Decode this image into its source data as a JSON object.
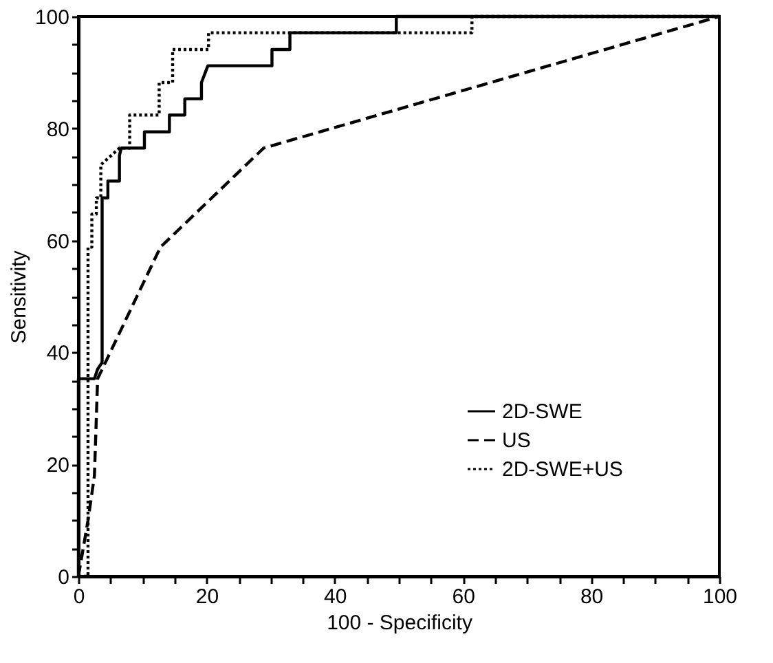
{
  "chart_data": {
    "type": "line",
    "xlabel": "100 - Specificity",
    "ylabel": "Sensitivity",
    "xlim": [
      0,
      100
    ],
    "ylim": [
      0,
      100
    ],
    "xticks": [
      0,
      {
        "value": 5,
        "label": null
      },
      {
        "value": 10,
        "label": null
      },
      {
        "value": 15,
        "label": null
      },
      20,
      {
        "value": 25,
        "label": null
      },
      {
        "value": 30,
        "label": null
      },
      {
        "value": 35,
        "label": null
      },
      40,
      {
        "value": 45,
        "label": null
      },
      {
        "value": 50,
        "label": null
      },
      {
        "value": 55,
        "label": null
      },
      60,
      {
        "value": 65,
        "label": null
      },
      {
        "value": 70,
        "label": null
      },
      {
        "value": 75,
        "label": null
      },
      80,
      {
        "value": 85,
        "label": null
      },
      {
        "value": 90,
        "label": null
      },
      {
        "value": 95,
        "label": null
      },
      100
    ],
    "yticks": [
      0,
      {
        "value": 5,
        "label": null
      },
      {
        "value": 10,
        "label": null
      },
      {
        "value": 15,
        "label": null
      },
      20,
      {
        "value": 25,
        "label": null
      },
      {
        "value": 30,
        "label": null
      },
      {
        "value": 35,
        "label": null
      },
      40,
      {
        "value": 45,
        "label": null
      },
      {
        "value": 50,
        "label": null
      },
      {
        "value": 55,
        "label": null
      },
      60,
      {
        "value": 65,
        "label": null
      },
      {
        "value": 70,
        "label": null
      },
      {
        "value": 75,
        "label": null
      },
      80,
      {
        "value": 85,
        "label": null
      },
      {
        "value": 90,
        "label": null
      },
      {
        "value": 95,
        "label": null
      },
      100
    ],
    "grid": false,
    "legend": "bottom right",
    "marker": "none",
    "series": [
      {
        "name": "2D-SWE",
        "color": "#000000",
        "line_style": "solid",
        "x": [
          0,
          0,
          0,
          2.5,
          3,
          3.7,
          3.7,
          4.6,
          4.6,
          6.4,
          6.4,
          6.7,
          10.3,
          10.3,
          14.2,
          14.2,
          16.6,
          16.6,
          19.2,
          19.2,
          20.2,
          30.2,
          30.2,
          33.0,
          33.0,
          49.6,
          49.6,
          100
        ],
        "values": [
          0,
          29.4,
          35.3,
          35.3,
          37,
          38.2,
          67.6,
          67.6,
          70.6,
          70.6,
          75.2,
          76.5,
          76.5,
          79.4,
          79.4,
          82.4,
          82.4,
          85.3,
          85.3,
          88.2,
          91.2,
          91.2,
          94.1,
          94.1,
          97.1,
          97.1,
          100,
          100
        ]
      },
      {
        "name": "US",
        "color": "#000000",
        "line_style": "dashed",
        "x": [
          0,
          1.5,
          2.5,
          3.0,
          12.8,
          28.9,
          100
        ],
        "values": [
          0,
          10,
          18,
          35.3,
          58.8,
          76.5,
          100
        ]
      },
      {
        "name": "2D-SWE+US",
        "color": "#000000",
        "line_style": "dotted",
        "x": [
          0,
          1.5,
          1.5,
          2.1,
          2.1,
          2.8,
          2.8,
          3.5,
          3.5,
          6.4,
          8.0,
          8.0,
          12.6,
          12.6,
          14.7,
          14.7,
          20.3,
          20.3,
          61.4,
          61.4,
          100
        ],
        "values": [
          0,
          0,
          58.8,
          58.8,
          64.7,
          64.7,
          67.6,
          67.6,
          73.5,
          76.5,
          76.5,
          82.4,
          82.4,
          88.2,
          88.2,
          94.1,
          94.1,
          97.1,
          97.1,
          100,
          100
        ]
      }
    ]
  }
}
